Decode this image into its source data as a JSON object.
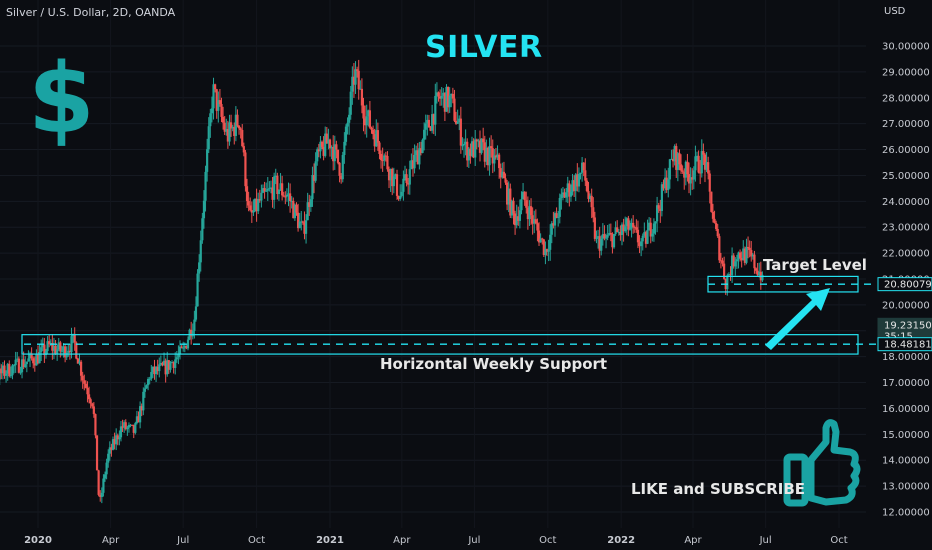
{
  "header": {
    "symbol": "Silver / U.S. Dollar, 2D, OANDA",
    "currency": "USD"
  },
  "title": "SILVER",
  "annotations": {
    "target": "Target Level",
    "support": "Horizontal Weekly Support",
    "cta": "LIKE and SUBSCRIBE"
  },
  "icons": {
    "dollar": "dollar-sign-icon",
    "thumbs_up": "thumbs-up-icon"
  },
  "colors": {
    "background": "#0b0d12",
    "up": "#26a69a",
    "down": "#ef5350",
    "accent": "#24e3f2",
    "icon": "#1aa3a3"
  },
  "chart_data": {
    "type": "candlestick",
    "title": "SILVER",
    "x_tick_labels": [
      "2020",
      "Apr",
      "Jul",
      "Oct",
      "2021",
      "Apr",
      "Jul",
      "Oct",
      "2022",
      "Apr",
      "Jul",
      "Oct"
    ],
    "y_tick_labels": [
      "12.00000",
      "13.00000",
      "14.00000",
      "15.00000",
      "16.00000",
      "17.00000",
      "18.00000",
      "19.00000",
      "20.00000",
      "21.00000",
      "22.00000",
      "23.00000",
      "24.00000",
      "25.00000",
      "26.00000",
      "27.00000",
      "28.00000",
      "29.00000",
      "30.00000"
    ],
    "ylim": [
      11.6,
      30.9
    ],
    "close_path": [
      [
        "2019-10-01",
        17.6
      ],
      [
        "2019-11-01",
        17.1
      ],
      [
        "2019-12-01",
        17.6
      ],
      [
        "2020-01-01",
        18.0
      ],
      [
        "2020-01-15",
        18.4
      ],
      [
        "2020-02-01",
        18.2
      ],
      [
        "2020-02-15",
        18.6
      ],
      [
        "2020-02-28",
        17.0
      ],
      [
        "2020-03-10",
        16.2
      ],
      [
        "2020-03-18",
        12.2
      ],
      [
        "2020-03-28",
        14.1
      ],
      [
        "2020-04-15",
        15.3
      ],
      [
        "2020-05-01",
        15.1
      ],
      [
        "2020-05-20",
        17.3
      ],
      [
        "2020-06-10",
        17.6
      ],
      [
        "2020-07-01",
        18.2
      ],
      [
        "2020-07-15",
        19.5
      ],
      [
        "2020-07-25",
        23.5
      ],
      [
        "2020-08-07",
        28.3
      ],
      [
        "2020-08-25",
        26.5
      ],
      [
        "2020-09-10",
        27.2
      ],
      [
        "2020-09-22",
        23.3
      ],
      [
        "2020-10-05",
        24.0
      ],
      [
        "2020-10-25",
        24.6
      ],
      [
        "2020-11-10",
        24.2
      ],
      [
        "2020-11-28",
        22.8
      ],
      [
        "2020-12-15",
        25.6
      ],
      [
        "2020-12-31",
        26.4
      ],
      [
        "2021-01-15",
        25.2
      ],
      [
        "2021-02-01",
        29.0
      ],
      [
        "2021-02-15",
        27.3
      ],
      [
        "2021-03-01",
        26.4
      ],
      [
        "2021-03-30",
        24.2
      ],
      [
        "2021-04-20",
        25.8
      ],
      [
        "2021-05-18",
        28.0
      ],
      [
        "2021-06-01",
        27.9
      ],
      [
        "2021-06-20",
        26.0
      ],
      [
        "2021-07-10",
        26.0
      ],
      [
        "2021-08-01",
        25.4
      ],
      [
        "2021-08-20",
        23.3
      ],
      [
        "2021-09-01",
        24.1
      ],
      [
        "2021-09-28",
        22.1
      ],
      [
        "2021-10-20",
        24.2
      ],
      [
        "2021-11-15",
        25.2
      ],
      [
        "2021-12-01",
        22.4
      ],
      [
        "2021-12-20",
        22.6
      ],
      [
        "2022-01-10",
        23.0
      ],
      [
        "2022-01-28",
        22.3
      ],
      [
        "2022-02-15",
        23.6
      ],
      [
        "2022-03-08",
        25.8
      ],
      [
        "2022-03-25",
        25.0
      ],
      [
        "2022-04-15",
        25.7
      ],
      [
        "2022-04-28",
        23.0
      ],
      [
        "2022-05-12",
        20.9
      ],
      [
        "2022-05-25",
        22.0
      ],
      [
        "2022-06-10",
        21.9
      ],
      [
        "2022-06-25",
        21.2
      ],
      [
        "2022-07-05",
        19.2
      ]
    ],
    "price_labels": {
      "target": "20.80079",
      "last": "19.23150",
      "countdown": "35:15",
      "support": "18.48181"
    },
    "levels": {
      "target": 20.80079,
      "support": 18.48181,
      "target_zone": [
        20.5,
        21.1
      ],
      "support_zone": [
        18.1,
        18.85
      ]
    }
  }
}
